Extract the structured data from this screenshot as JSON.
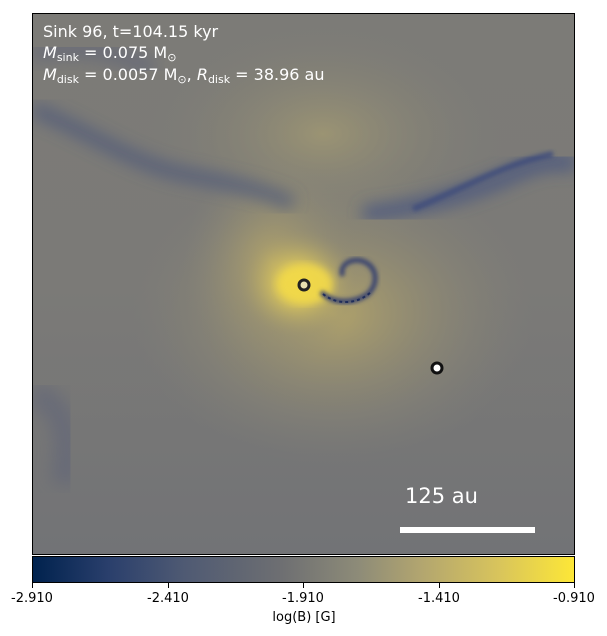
{
  "annotation": {
    "line1": "Sink 96, t=104.15 kyr",
    "msink_symbol": "M",
    "msink_sub": "sink",
    "msink_value": "= 0.075 M",
    "msink_unit_sub": "⊙",
    "mdisk_symbol": "M",
    "mdisk_sub": "disk",
    "mdisk_value": "= 0.0057 M",
    "mdisk_unit_sub": "⊙",
    "rdisk_symbol": "R",
    "rdisk_sub": "disk",
    "rdisk_value": "= 38.96 au"
  },
  "scale_bar": {
    "label": "125 au"
  },
  "colorbar": {
    "ticks": [
      "-2.910",
      "-2.410",
      "-1.910",
      "-1.410",
      "-0.910"
    ],
    "label": "log(B) [G]",
    "colors": [
      "#00224e",
      "#4f5a73",
      "#7a7a78",
      "#b3a66f",
      "#fde737"
    ]
  },
  "markers": [
    {
      "name": "sink-96",
      "fill": "#e8e0b0"
    },
    {
      "name": "companion-sink",
      "fill": "#ffffff"
    }
  ]
}
